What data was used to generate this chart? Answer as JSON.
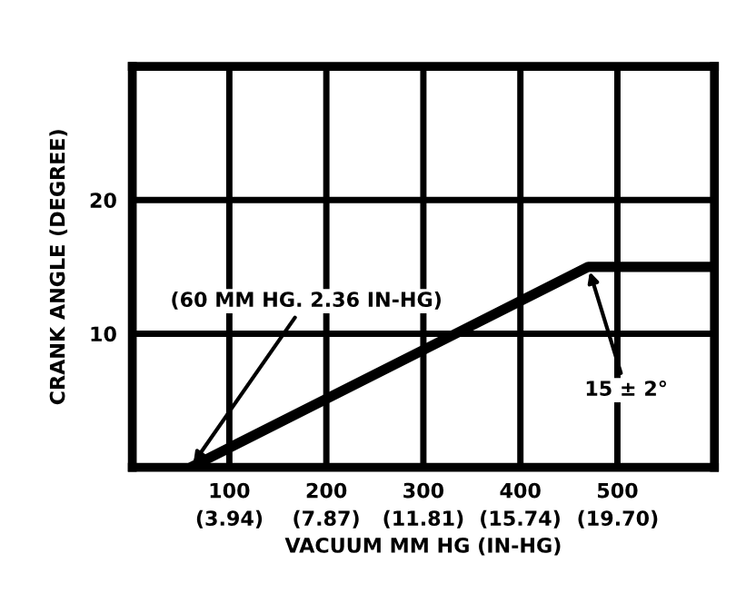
{
  "chart_data": {
    "type": "line",
    "x": [
      60,
      470,
      600
    ],
    "values": [
      0,
      15,
      15
    ],
    "color": "#000000",
    "xlabel": "VACUUM MM HG (IN-HG)",
    "ylabel": "CRANK ANGLE (DEGREE)",
    "xlim": [
      0,
      600
    ],
    "ylim": [
      0,
      30
    ],
    "xticks": [
      100,
      200,
      300,
      400,
      500
    ],
    "x2lim": [
      0,
      23.62
    ],
    "x2ticks": [
      {
        "value": 3.94,
        "label": "(3.94)"
      },
      {
        "value": 7.87,
        "label": "(7.87)"
      },
      {
        "value": 11.81,
        "label": "(11.81)"
      },
      {
        "value": 15.74,
        "label": "(15.74)"
      },
      {
        "value": 19.7,
        "label": "(19.70)"
      }
    ],
    "yticks": [
      10,
      20
    ],
    "grid": true,
    "annotations": [
      {
        "text": "(60 MM HG. 2.36 IN-HG)",
        "x": 60,
        "y": 0
      },
      {
        "text": "15 ± 2°",
        "x": 470,
        "y": 15
      }
    ]
  }
}
